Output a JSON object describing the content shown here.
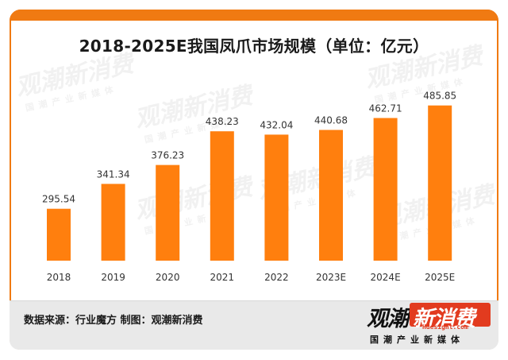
{
  "chart_data": {
    "type": "bar",
    "title": "2018-2025E我国凤爪市场规模（单位：亿元）",
    "categories": [
      "2018",
      "2019",
      "2020",
      "2021",
      "2022",
      "2023E",
      "2024E",
      "2025E"
    ],
    "values": [
      295.54,
      341.34,
      376.23,
      438.23,
      432.04,
      440.68,
      462.71,
      485.85
    ],
    "value_labels": [
      "295.54",
      "341.34",
      "376.23",
      "438.23",
      "432.04",
      "440.68",
      "462.71",
      "485.85"
    ],
    "xlabel": "",
    "ylabel": "",
    "ylim": [
      200,
      500
    ],
    "grid": false,
    "bar_color": "#ff7f0e"
  },
  "footer": {
    "source": "数据来源：行业魔方    制图：观潮新消费"
  },
  "logo": {
    "left_text": "观潮",
    "right_text": "新消费",
    "site": "Hdesight.com",
    "slogan": "国潮产业新媒体",
    "accent": "#e23b1f"
  },
  "watermark": {
    "text": "观潮新消费",
    "site": "Hdesight.com",
    "slogan": "国潮产业新媒体"
  },
  "colors": {
    "frame": "#f07a12",
    "footer_bg": "#e9e9e9"
  }
}
